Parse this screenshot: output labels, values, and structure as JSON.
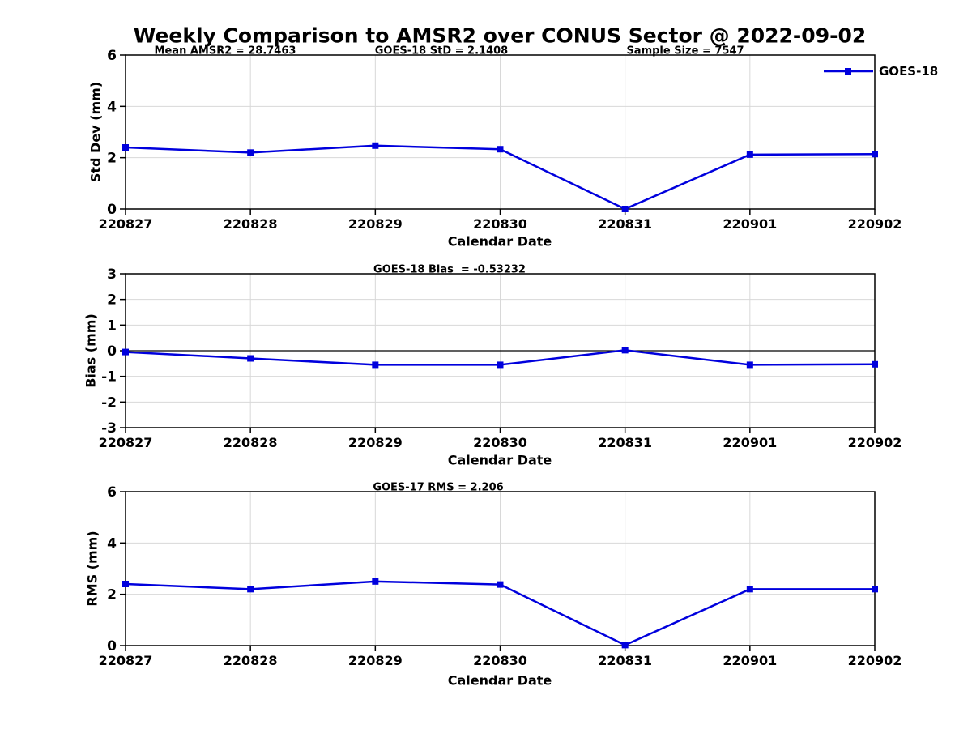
{
  "title": "Weekly Comparison to AMSR2 over CONUS Sector @ 2022-09-02",
  "colors": {
    "series": "#0000dd",
    "grid": "#d8d8d8",
    "axis": "#000000",
    "background": "#ffffff"
  },
  "legend": {
    "label": "GOES-18",
    "position": "top-right"
  },
  "chart_data": [
    {
      "type": "line",
      "title": "",
      "xlabel": "Calendar Date",
      "ylabel": "Std Dev (mm)",
      "categories": [
        "220827",
        "220828",
        "220829",
        "220830",
        "220831",
        "220901",
        "220902"
      ],
      "series": [
        {
          "name": "GOES-18",
          "values": [
            2.4,
            2.2,
            2.47,
            2.33,
            0.0,
            2.12,
            2.14
          ]
        }
      ],
      "ylim": [
        0,
        6
      ],
      "yticks": [
        0,
        2,
        4,
        6
      ],
      "grid": true,
      "zero_line": false,
      "marker": "square",
      "annotations": [
        {
          "text": "Mean AMSR2 = 28.7463"
        },
        {
          "text": "GOES-18 StD = 2.1408"
        },
        {
          "text": "Sample Size = 7547"
        }
      ],
      "legend": {
        "label": "GOES-18",
        "position": "top-right"
      }
    },
    {
      "type": "line",
      "title": "",
      "xlabel": "Calendar Date",
      "ylabel": "Bias (mm)",
      "categories": [
        "220827",
        "220828",
        "220829",
        "220830",
        "220831",
        "220901",
        "220902"
      ],
      "series": [
        {
          "name": "GOES-18",
          "values": [
            -0.05,
            -0.3,
            -0.55,
            -0.55,
            0.02,
            -0.55,
            -0.53
          ]
        }
      ],
      "ylim": [
        -3,
        3
      ],
      "yticks": [
        -3,
        -2,
        -1,
        0,
        1,
        2,
        3
      ],
      "grid": true,
      "zero_line": true,
      "marker": "square",
      "annotations": [
        {
          "text": "GOES-18 Bias  = -0.53232"
        }
      ]
    },
    {
      "type": "line",
      "title": "",
      "xlabel": "Calendar Date",
      "ylabel": "RMS (mm)",
      "categories": [
        "220827",
        "220828",
        "220829",
        "220830",
        "220831",
        "220901",
        "220902"
      ],
      "series": [
        {
          "name": "GOES-18",
          "values": [
            2.4,
            2.2,
            2.5,
            2.38,
            0.02,
            2.2,
            2.2
          ]
        }
      ],
      "ylim": [
        0,
        6
      ],
      "yticks": [
        0,
        2,
        4,
        6
      ],
      "grid": true,
      "zero_line": false,
      "marker": "square",
      "annotations": [
        {
          "text": "GOES-17 RMS = 2.206"
        }
      ]
    }
  ]
}
